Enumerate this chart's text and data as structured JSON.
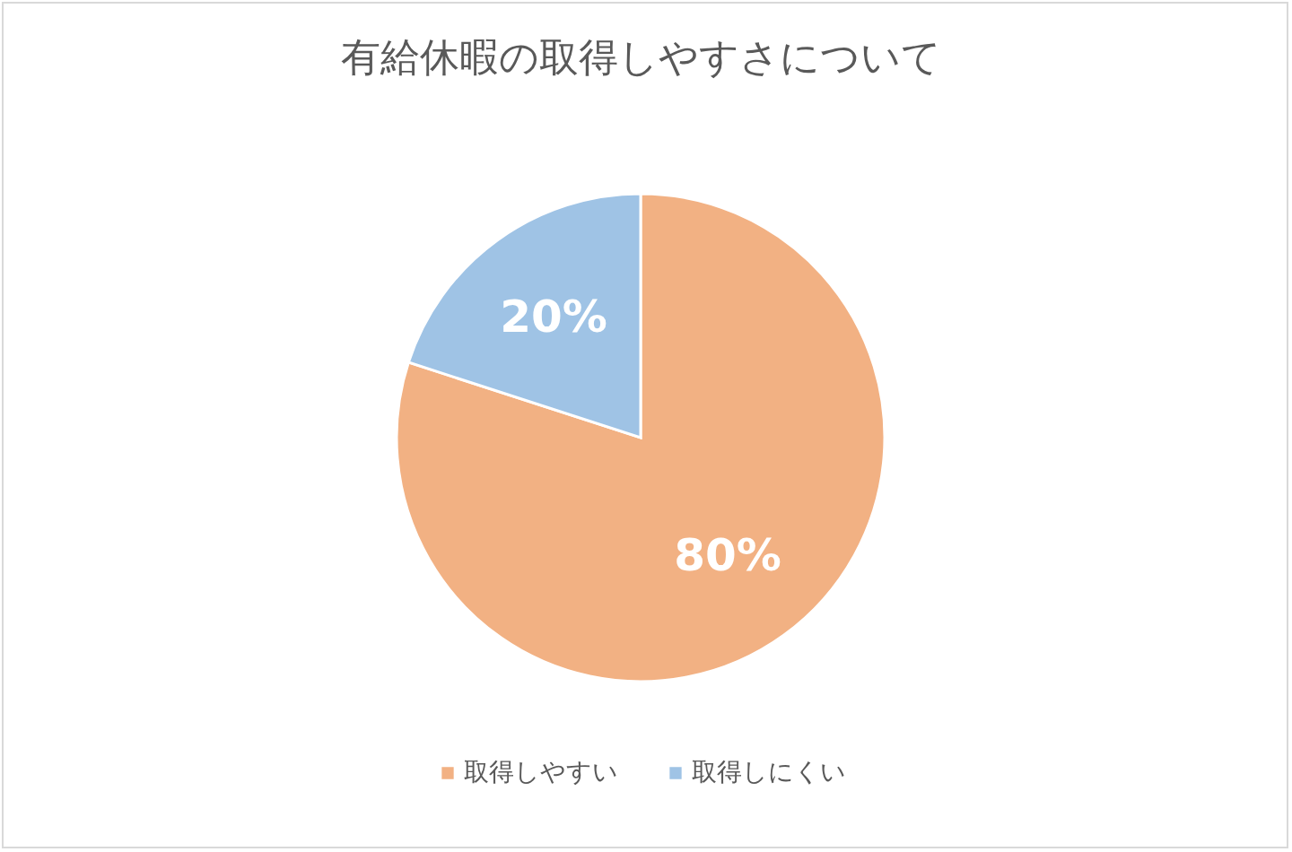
{
  "chart_data": {
    "type": "pie",
    "title": "有給休暇の取得しやすさについて",
    "categories": [
      "取得しやすい",
      "取得しにくい"
    ],
    "values": [
      80,
      20
    ],
    "value_labels": [
      "80%",
      "20%"
    ],
    "colors": [
      "#f2b183",
      "#9fc3e5"
    ],
    "legend": "bottom"
  }
}
